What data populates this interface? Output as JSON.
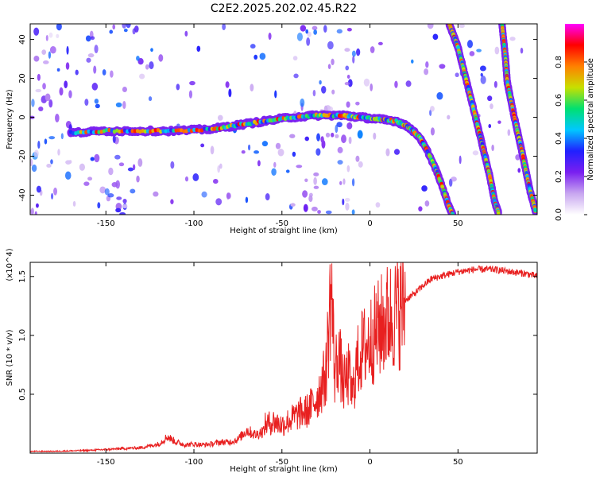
{
  "title": "C2E2.2025.202.02.45.R22",
  "chart_data": [
    {
      "type": "heatmap",
      "title": "C2E2.2025.202.02.45.R22",
      "xlabel": "Height of straight line (km)",
      "ylabel": "Frequency (Hz)",
      "xlim": [
        -193,
        95
      ],
      "ylim": [
        -50,
        48
      ],
      "xticks": [
        -150,
        -100,
        -50,
        0,
        50
      ],
      "yticks": [
        -40,
        -20,
        0,
        20,
        40
      ],
      "colorbar": {
        "label": "Normalized spectral amplitude",
        "range": [
          0,
          1
        ],
        "ticks": [
          "0.0",
          "0.2",
          "0.4",
          "0.6",
          "0.8"
        ],
        "colormap": "rainbow",
        "colors": [
          "#ffffff",
          "#c8a6f0",
          "#7a1ff0",
          "#2020ff",
          "#00c8ff",
          "#00e070",
          "#c8e000",
          "#ff8000",
          "#ff0000",
          "#ff00ff"
        ]
      },
      "ridges": [
        {
          "name": "main-trace",
          "points": [
            [
              -170,
              -8
            ],
            [
              -150,
              -7
            ],
            [
              -130,
              -7
            ],
            [
              -110,
              -7
            ],
            [
              -90,
              -6
            ],
            [
              -75,
              -4
            ],
            [
              -60,
              -2
            ],
            [
              -45,
              0
            ],
            [
              -30,
              1
            ],
            [
              -15,
              1
            ],
            [
              -5,
              0
            ],
            [
              5,
              -1
            ],
            [
              15,
              -2
            ],
            [
              22,
              -5
            ],
            [
              28,
              -10
            ],
            [
              33,
              -18
            ],
            [
              38,
              -28
            ],
            [
              42,
              -38
            ],
            [
              45,
              -46
            ],
            [
              47,
              -50
            ]
          ]
        },
        {
          "name": "diagonal-2",
          "points": [
            [
              45,
              48
            ],
            [
              50,
              36
            ],
            [
              55,
              18
            ],
            [
              60,
              0
            ],
            [
              64,
              -15
            ],
            [
              68,
              -30
            ],
            [
              71,
              -44
            ],
            [
              73,
              -49
            ]
          ]
        },
        {
          "name": "diagonal-3",
          "points": [
            [
              75,
              48
            ],
            [
              77,
              30
            ],
            [
              78,
              18
            ],
            [
              82,
              0
            ],
            [
              85,
              -12
            ],
            [
              88,
              -25
            ],
            [
              91,
              -38
            ],
            [
              94,
              -48
            ]
          ]
        }
      ]
    },
    {
      "type": "line",
      "xlabel": "Height of straight line (km)",
      "ylabel": "SNR (10 * v/v)",
      "y_multiplier": "(x10^4)",
      "xlim": [
        -193,
        95
      ],
      "ylim": [
        0,
        1.62
      ],
      "xticks": [
        -150,
        -100,
        -50,
        0,
        50
      ],
      "yticks": [
        "0.5",
        "1.0",
        "1.5"
      ],
      "color": "#e82020",
      "series": [
        {
          "x": [
            -193,
            -180,
            -160,
            -140,
            -130,
            -120,
            -115,
            -110,
            -105,
            -100,
            -95,
            -90,
            -85,
            -80,
            -75,
            -70,
            -65,
            -60,
            -55,
            -50,
            -45,
            -40,
            -35,
            -30,
            -25,
            -22,
            -20,
            -18,
            -15,
            -12,
            -10,
            -8,
            -5,
            0,
            5,
            10,
            15,
            20,
            25,
            30,
            35,
            40,
            50,
            60,
            70,
            80,
            90,
            95
          ],
          "y": [
            0.02,
            0.02,
            0.03,
            0.05,
            0.06,
            0.1,
            0.18,
            0.12,
            0.09,
            0.1,
            0.09,
            0.1,
            0.12,
            0.12,
            0.15,
            0.25,
            0.2,
            0.25,
            0.28,
            0.25,
            0.3,
            0.35,
            0.38,
            0.5,
            0.7,
            1.5,
            0.7,
            0.9,
            0.6,
            0.7,
            0.5,
            0.75,
            0.9,
            1.0,
            1.1,
            1.2,
            1.25,
            1.3,
            1.35,
            1.42,
            1.48,
            1.5,
            1.54,
            1.56,
            1.56,
            1.54,
            1.52,
            1.5
          ]
        }
      ]
    }
  ]
}
